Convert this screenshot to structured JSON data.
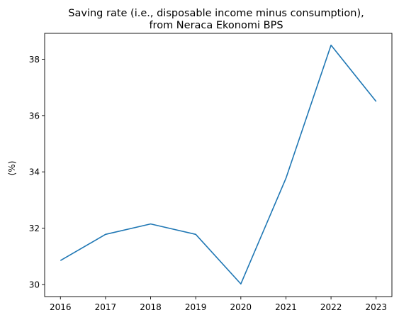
{
  "chart_data": {
    "type": "line",
    "title_lines": [
      "Saving rate (i.e., disposable income minus consumption),",
      "from Neraca Ekonomi BPS"
    ],
    "xlabel": "",
    "ylabel": "(%)",
    "x": [
      2016,
      2017,
      2018,
      2019,
      2020,
      2021,
      2022,
      2023
    ],
    "x_ticks": [
      "2016",
      "2017",
      "2018",
      "2019",
      "2020",
      "2021",
      "2022",
      "2023"
    ],
    "y_ticks": [
      30,
      32,
      34,
      36,
      38
    ],
    "xlim": [
      2015.65,
      2023.35
    ],
    "ylim": [
      29.57,
      38.92
    ],
    "series": [
      {
        "values": [
          30.85,
          31.78,
          32.15,
          31.78,
          30.02,
          33.77,
          38.5,
          36.5
        ],
        "color": "#1f77b4"
      }
    ],
    "grid": false,
    "legend": "none"
  }
}
